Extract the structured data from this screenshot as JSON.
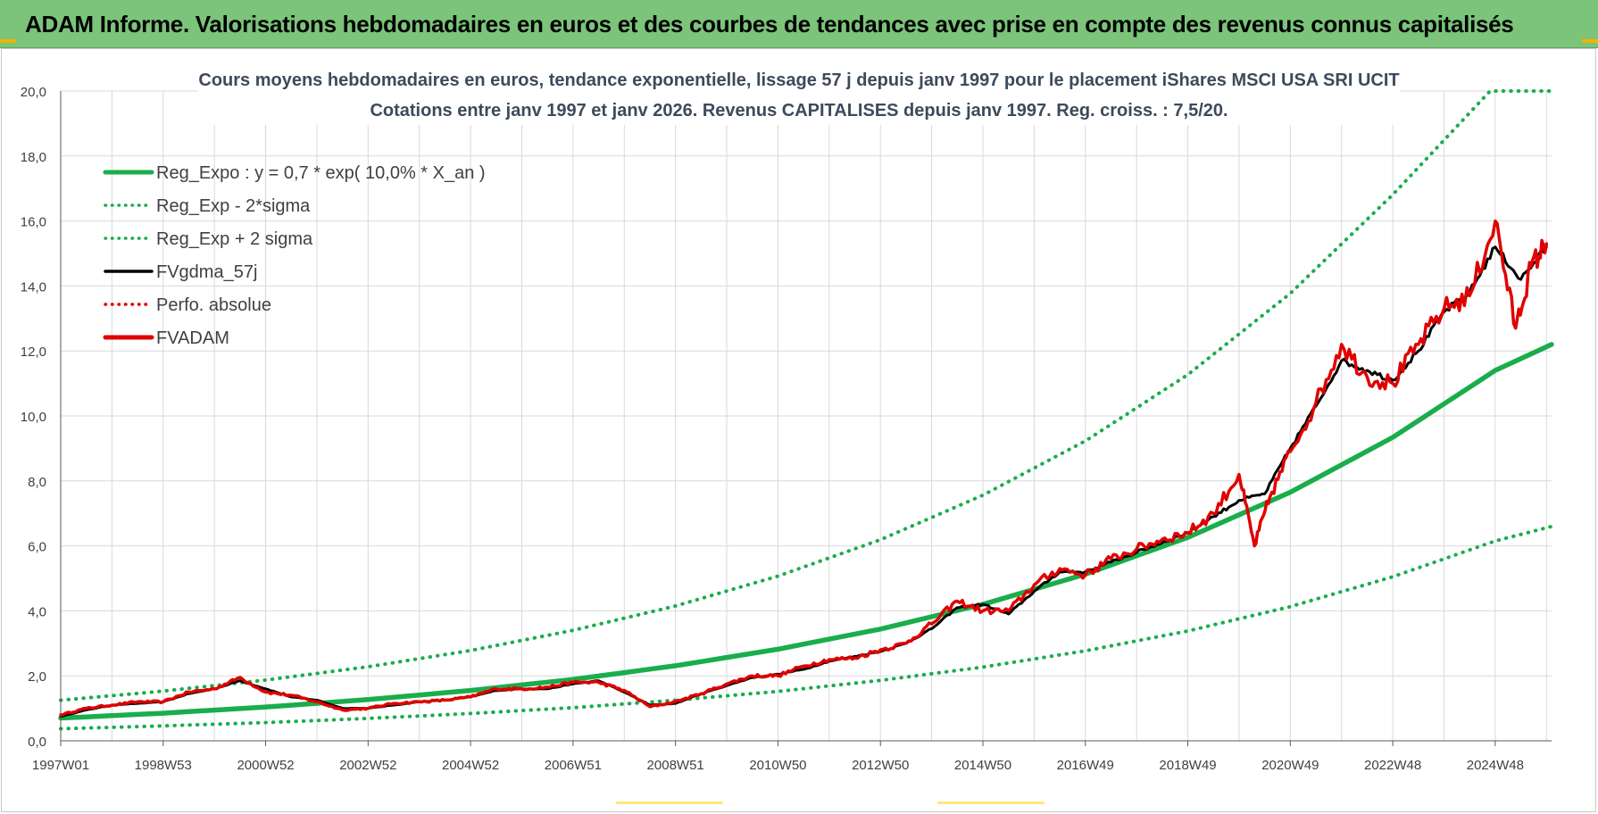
{
  "banner": {
    "title": "ADAM Informe. Valorisations hebdomadaires en euros et des courbes de tendances avec prise en compte des revenus connus capitalisés"
  },
  "chart_data": {
    "type": "line",
    "title_line1": "Cours moyens hebdomadaires en euros, tendance exponentielle, lissage 57 j depuis janv 1997  pour le placement iShares MSCI USA SRI UCIT",
    "title_line2": "Cotations entre janv 1997 et janv 2026. Revenus CAPITALISES depuis janv 1997. Reg. croiss. : 7,5/20.",
    "xlabel": "",
    "ylabel": "",
    "xlim": [
      1997.0,
      2026.1
    ],
    "ylim": [
      0,
      20
    ],
    "y_ticks": [
      "0,0",
      "2,0",
      "4,0",
      "6,0",
      "8,0",
      "10,0",
      "12,0",
      "14,0",
      "16,0",
      "18,0",
      "20,0"
    ],
    "x_ticks": [
      {
        "label": "1997W01",
        "x": 1997.0
      },
      {
        "label": "1998W53",
        "x": 1999.0
      },
      {
        "label": "2000W52",
        "x": 2001.0
      },
      {
        "label": "2002W52",
        "x": 2003.0
      },
      {
        "label": "2004W52",
        "x": 2005.0
      },
      {
        "label": "2006W51",
        "x": 2007.0
      },
      {
        "label": "2008W51",
        "x": 2009.0
      },
      {
        "label": "2010W50",
        "x": 2011.0
      },
      {
        "label": "2012W50",
        "x": 2013.0
      },
      {
        "label": "2014W50",
        "x": 2015.0
      },
      {
        "label": "2016W49",
        "x": 2017.0
      },
      {
        "label": "2018W49",
        "x": 2019.0
      },
      {
        "label": "2020W49",
        "x": 2021.0
      },
      {
        "label": "2022W48",
        "x": 2023.0
      },
      {
        "label": "2024W48",
        "x": 2025.0
      }
    ],
    "grid": true,
    "legend_position": "top-left",
    "legend": [
      {
        "label": "Reg_Expo : y = 0,7 * exp( 10,0% *  X_an )",
        "color": "#1aad4c",
        "style": "solid-thick"
      },
      {
        "label": "Reg_Exp - 2*sigma",
        "color": "#1aad4c",
        "style": "dotted"
      },
      {
        "label": "Reg_Exp + 2 sigma",
        "color": "#1aad4c",
        "style": "dotted"
      },
      {
        "label": "FVgdma_57j",
        "color": "#000000",
        "style": "solid"
      },
      {
        "label": "Perfo. absolue",
        "color": "#e00000",
        "style": "dotted"
      },
      {
        "label": "FVADAM",
        "color": "#e00000",
        "style": "solid-thick"
      }
    ],
    "series": [
      {
        "name": "Reg_Expo",
        "color": "#1aad4c",
        "x": [
          1997,
          1999,
          2001,
          2003,
          2005,
          2007,
          2009,
          2011,
          2013,
          2015,
          2017,
          2019,
          2021,
          2023,
          2025,
          2026.1
        ],
        "values": [
          0.7,
          0.85,
          1.04,
          1.27,
          1.55,
          1.89,
          2.31,
          2.82,
          3.44,
          4.2,
          5.13,
          6.26,
          7.65,
          9.34,
          11.4,
          12.2
        ]
      },
      {
        "name": "Reg_Exp - 2*sigma",
        "color": "#1aad4c",
        "x": [
          1997,
          1999,
          2001,
          2003,
          2005,
          2007,
          2009,
          2011,
          2013,
          2015,
          2017,
          2019,
          2021,
          2023,
          2025,
          2026.1
        ],
        "values": [
          0.37,
          0.46,
          0.56,
          0.69,
          0.84,
          1.02,
          1.25,
          1.52,
          1.86,
          2.27,
          2.77,
          3.38,
          4.13,
          5.05,
          6.15,
          6.6
        ]
      },
      {
        "name": "Reg_Exp + 2 sigma",
        "color": "#1aad4c",
        "x": [
          1997,
          1999,
          2001,
          2003,
          2005,
          2007,
          2009,
          2011,
          2013,
          2015,
          2017,
          2019,
          2021,
          2023,
          2024.9,
          2026.1
        ],
        "values": [
          1.25,
          1.53,
          1.87,
          2.28,
          2.78,
          3.4,
          4.15,
          5.07,
          6.19,
          7.56,
          9.23,
          11.27,
          13.77,
          16.81,
          20.0,
          20.0
        ]
      },
      {
        "name": "FVgdma_57j",
        "color": "#000000",
        "x": [
          1997.0,
          1997.5,
          1998.0,
          1998.5,
          1999.0,
          1999.5,
          2000.0,
          2000.5,
          2001.0,
          2001.5,
          2002.0,
          2002.5,
          2003.0,
          2003.5,
          2004.0,
          2004.5,
          2005.0,
          2005.5,
          2006.0,
          2006.5,
          2007.0,
          2007.5,
          2008.0,
          2008.5,
          2009.0,
          2009.5,
          2010.0,
          2010.5,
          2011.0,
          2011.5,
          2012.0,
          2012.5,
          2013.0,
          2013.5,
          2014.0,
          2014.5,
          2015.0,
          2015.5,
          2016.0,
          2016.5,
          2017.0,
          2017.5,
          2018.0,
          2018.5,
          2019.0,
          2019.5,
          2020.0,
          2020.5,
          2021.0,
          2021.5,
          2022.0,
          2022.5,
          2023.0,
          2023.5,
          2024.0,
          2024.5,
          2025.0,
          2025.5,
          2026.0
        ],
        "values": [
          0.75,
          0.95,
          1.1,
          1.15,
          1.2,
          1.45,
          1.6,
          1.85,
          1.6,
          1.35,
          1.25,
          1.0,
          1.0,
          1.1,
          1.2,
          1.25,
          1.35,
          1.55,
          1.6,
          1.6,
          1.75,
          1.85,
          1.5,
          1.1,
          1.15,
          1.45,
          1.7,
          1.95,
          2.05,
          2.2,
          2.45,
          2.6,
          2.75,
          3.0,
          3.45,
          4.1,
          4.2,
          3.9,
          4.6,
          5.2,
          5.2,
          5.5,
          5.8,
          6.1,
          6.4,
          6.9,
          7.4,
          7.6,
          9.0,
          10.3,
          11.7,
          11.4,
          11.1,
          12.0,
          13.2,
          13.8,
          15.2,
          14.2,
          15.2
        ]
      },
      {
        "name": "FVADAM",
        "color": "#e00000",
        "x": [
          1997.0,
          1997.5,
          1998.0,
          1998.5,
          1999.0,
          1999.5,
          2000.0,
          2000.5,
          2001.0,
          2001.5,
          2002.0,
          2002.5,
          2003.0,
          2003.5,
          2004.0,
          2004.5,
          2005.0,
          2005.5,
          2006.0,
          2006.5,
          2007.0,
          2007.5,
          2008.0,
          2008.5,
          2009.0,
          2009.5,
          2010.0,
          2010.5,
          2011.0,
          2011.5,
          2012.0,
          2012.5,
          2013.0,
          2013.5,
          2014.0,
          2014.5,
          2015.0,
          2015.5,
          2016.0,
          2016.5,
          2017.0,
          2017.5,
          2018.0,
          2018.5,
          2019.0,
          2019.5,
          2020.0,
          2020.3,
          2020.6,
          2021.0,
          2021.5,
          2022.0,
          2022.5,
          2023.0,
          2023.5,
          2024.0,
          2024.5,
          2025.0,
          2025.4,
          2025.7,
          2026.0
        ],
        "values": [
          0.8,
          1.0,
          1.1,
          1.2,
          1.2,
          1.5,
          1.6,
          1.95,
          1.5,
          1.4,
          1.2,
          0.95,
          1.0,
          1.15,
          1.2,
          1.25,
          1.35,
          1.6,
          1.6,
          1.65,
          1.8,
          1.8,
          1.55,
          1.05,
          1.2,
          1.45,
          1.75,
          2.0,
          2.0,
          2.3,
          2.5,
          2.55,
          2.8,
          3.0,
          3.6,
          4.3,
          4.0,
          4.0,
          4.8,
          5.3,
          5.1,
          5.6,
          5.9,
          6.2,
          6.4,
          7.0,
          8.2,
          6.0,
          7.5,
          8.9,
          10.4,
          12.2,
          11.2,
          11.0,
          12.2,
          13.3,
          13.7,
          16.0,
          12.7,
          14.6,
          15.3
        ]
      }
    ]
  }
}
